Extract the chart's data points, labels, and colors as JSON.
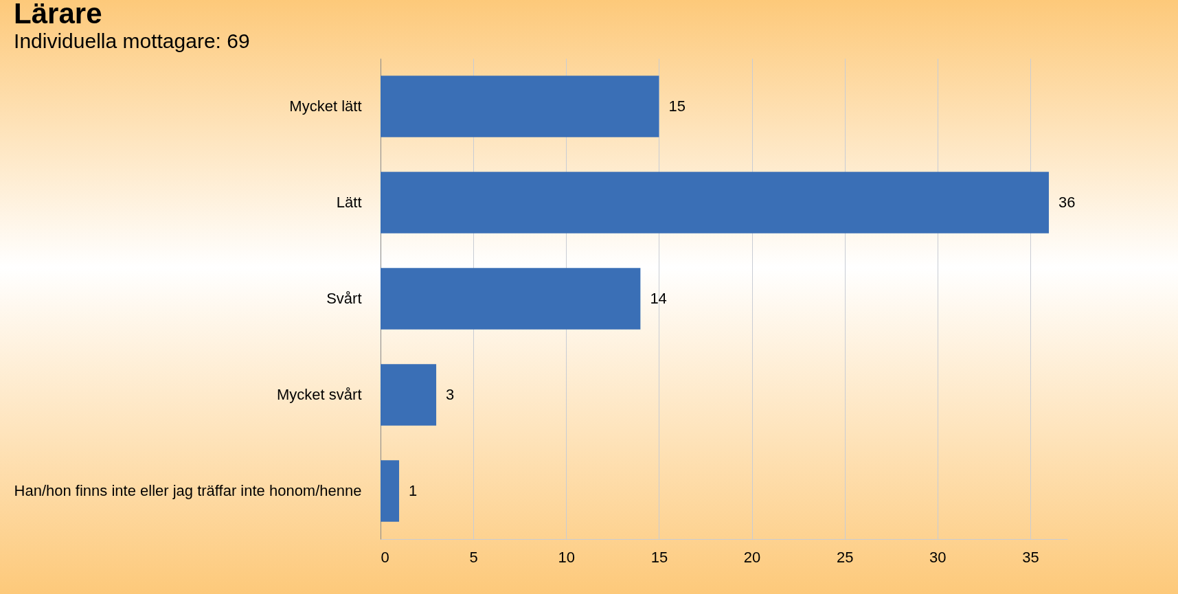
{
  "chart_data": {
    "type": "bar",
    "orientation": "horizontal",
    "title": "Lärare",
    "subtitle": "Individuella mottagare: 69",
    "categories": [
      "Mycket lätt",
      "Lätt",
      "Svårt",
      "Mycket svårt",
      "Han/hon finns inte eller jag träffar inte honom/henne"
    ],
    "values": [
      15,
      36,
      14,
      3,
      1
    ],
    "color": "#3a6fb6",
    "xlim": [
      0,
      37
    ],
    "xticks": [
      0,
      5,
      10,
      15,
      20,
      25,
      30,
      35
    ],
    "grid": "x",
    "data_labels": true
  }
}
